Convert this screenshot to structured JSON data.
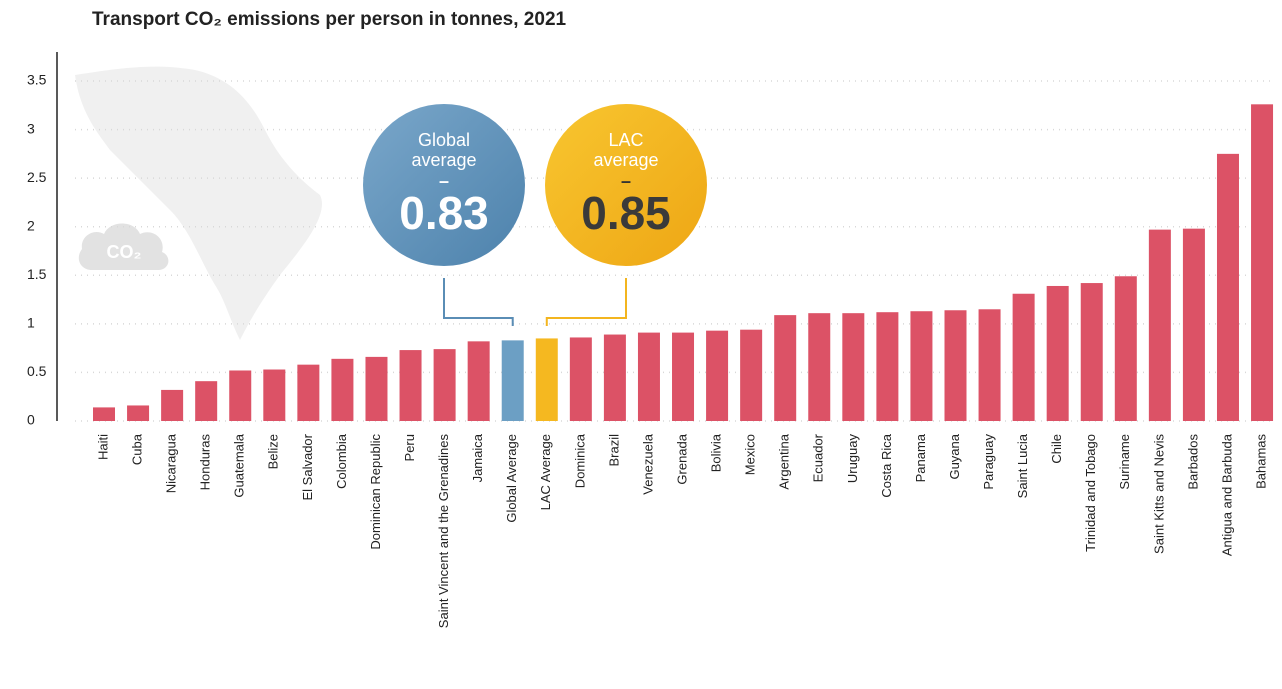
{
  "chart_data": {
    "type": "bar",
    "title": "Transport CO₂ emissions per person in tonnes, 2021",
    "icon_text": "CO₂",
    "categories": [
      "Haiti",
      "Cuba",
      "Nicaragua",
      "Honduras",
      "Guatemala",
      "Belize",
      "El Salvador",
      "Colombia",
      "Dominican Republic",
      "Peru",
      "Saint Vincent and the Grenadines",
      "Jamaica",
      "Global Average",
      "LAC Average",
      "Dominica",
      "Brazil",
      "Venezuela",
      "Grenada",
      "Bolivia",
      "Mexico",
      "Argentina",
      "Ecuador",
      "Uruguay",
      "Costa Rica",
      "Panama",
      "Guyana",
      "Paraguay",
      "Saint Lucia",
      "Chile",
      "Trinidad and Tobago",
      "Suriname",
      "Saint Kitts and Nevis",
      "Barbados",
      "Antigua and Barbuda",
      "Bahamas"
    ],
    "values": [
      0.14,
      0.16,
      0.32,
      0.41,
      0.52,
      0.53,
      0.58,
      0.64,
      0.66,
      0.73,
      0.74,
      0.82,
      0.83,
      0.85,
      0.86,
      0.89,
      0.91,
      0.91,
      0.93,
      0.94,
      1.09,
      1.11,
      1.11,
      1.12,
      1.13,
      1.14,
      1.15,
      1.31,
      1.39,
      1.42,
      1.49,
      1.97,
      1.98,
      2.75,
      3.26
    ],
    "colors": [
      "#dc5266",
      "#dc5266",
      "#dc5266",
      "#dc5266",
      "#dc5266",
      "#dc5266",
      "#dc5266",
      "#dc5266",
      "#dc5266",
      "#dc5266",
      "#dc5266",
      "#dc5266",
      "#6c9fc4",
      "#f5b820",
      "#dc5266",
      "#dc5266",
      "#dc5266",
      "#dc5266",
      "#dc5266",
      "#dc5266",
      "#dc5266",
      "#dc5266",
      "#dc5266",
      "#dc5266",
      "#dc5266",
      "#dc5266",
      "#dc5266",
      "#dc5266",
      "#dc5266",
      "#dc5266",
      "#dc5266",
      "#dc5266",
      "#dc5266",
      "#dc5266",
      "#dc5266"
    ],
    "ylim": [
      0,
      3.5
    ],
    "yticks": [
      0,
      0.5,
      1,
      1.5,
      2,
      2.5,
      3,
      3.5
    ],
    "grid": true,
    "annotations": [
      {
        "label": "Global average",
        "dash": "–",
        "value": 0.83,
        "color": "#5a8db5",
        "category": 12
      },
      {
        "label": "LAC average",
        "dash": "–",
        "value": 0.85,
        "color": "#f3b51f",
        "category": 13
      }
    ]
  }
}
